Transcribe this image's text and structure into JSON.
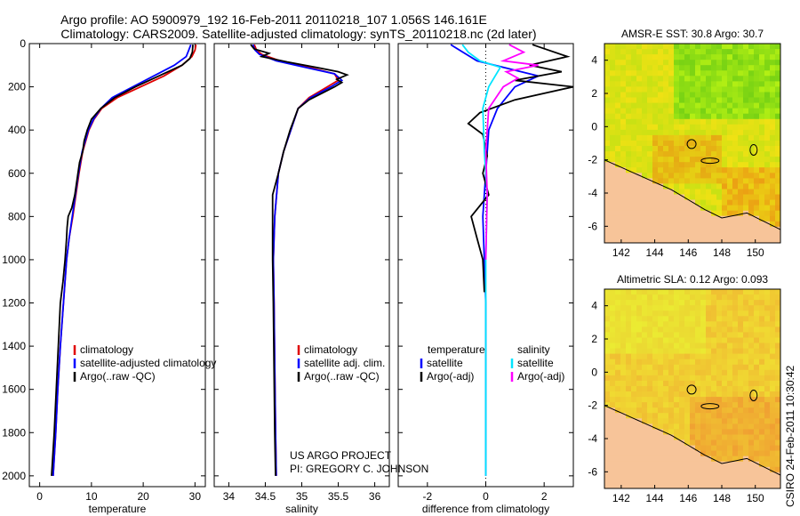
{
  "header": {
    "title_line1": "Argo profile: AO 5900979_192 16-Feb-2011 20110218_107 1.056S 146.161E",
    "title_line2": "Climatology: CARS2009. Satellite-adjusted climatology: synTS_20110218.nc (2d later)"
  },
  "side_text": "CSIRO 24-Feb-2011 10:30:42",
  "credit": {
    "line1": "US ARGO PROJECT",
    "line2": "PI: GREGORY C. JOHNSON"
  },
  "colors": {
    "climatology": "#e00000",
    "satellite": "#0000ff",
    "argo": "#000000",
    "cyan": "#00e5ff",
    "magenta": "#ff00ff",
    "land": "#f7c499"
  },
  "chart_data": [
    {
      "type": "line",
      "xlabel": "temperature",
      "ylim": [
        2050,
        0
      ],
      "xlim": [
        -2,
        32
      ],
      "xticks": [
        0,
        10,
        20,
        30
      ],
      "yticks": [
        0,
        200,
        400,
        600,
        800,
        1000,
        1200,
        1400,
        1600,
        1800,
        2000
      ],
      "legend": [
        "climatology",
        "satellite-adjusted climatology",
        "Argo(..raw -QC)"
      ],
      "series": [
        {
          "name": "climatology",
          "color": "#e00000",
          "points": [
            [
              30.2,
              5
            ],
            [
              30.0,
              30
            ],
            [
              29.4,
              60
            ],
            [
              27.5,
              100
            ],
            [
              24,
              150
            ],
            [
              19.5,
              200
            ],
            [
              15,
              250
            ],
            [
              12,
              300
            ],
            [
              10.5,
              350
            ],
            [
              9.5,
              400
            ],
            [
              8.3,
              500
            ],
            [
              7.6,
              600
            ],
            [
              7.0,
              700
            ],
            [
              6.4,
              800
            ],
            [
              5.7,
              900
            ],
            [
              5.2,
              1000
            ],
            [
              4.6,
              1200
            ],
            [
              4.0,
              1400
            ],
            [
              3.5,
              1600
            ],
            [
              3.1,
              1800
            ],
            [
              2.6,
              2000
            ]
          ]
        },
        {
          "name": "satellite-adjusted climatology",
          "color": "#0000ff",
          "points": [
            [
              29.2,
              5
            ],
            [
              28.8,
              30
            ],
            [
              28.3,
              60
            ],
            [
              26,
              100
            ],
            [
              22,
              150
            ],
            [
              18,
              200
            ],
            [
              14,
              250
            ],
            [
              11.8,
              300
            ],
            [
              10.4,
              350
            ],
            [
              9.4,
              400
            ],
            [
              8.2,
              500
            ],
            [
              7.5,
              600
            ],
            [
              6.9,
              700
            ],
            [
              6.3,
              800
            ],
            [
              5.7,
              900
            ],
            [
              5.2,
              1000
            ],
            [
              4.6,
              1200
            ],
            [
              4.0,
              1400
            ],
            [
              3.5,
              1600
            ],
            [
              3.1,
              1800
            ],
            [
              2.6,
              2000
            ]
          ]
        },
        {
          "name": "Argo(..raw -QC)",
          "color": "#000000",
          "points": [
            [
              29.6,
              5
            ],
            [
              29.5,
              40
            ],
            [
              29.0,
              70
            ],
            [
              27.5,
              100
            ],
            [
              23,
              150
            ],
            [
              18.5,
              200
            ],
            [
              14.5,
              250
            ],
            [
              11.8,
              300
            ],
            [
              10,
              350
            ],
            [
              9.2,
              400
            ],
            [
              8.6,
              450
            ],
            [
              8.3,
              500
            ],
            [
              7.7,
              550
            ],
            [
              7.4,
              600
            ],
            [
              6.8,
              700
            ],
            [
              6.2,
              760
            ],
            [
              5.5,
              800
            ],
            [
              5.3,
              850
            ],
            [
              5.2,
              900
            ],
            [
              4.9,
              1000
            ],
            [
              4.5,
              1100
            ],
            [
              4.0,
              1200
            ],
            [
              3.6,
              1400
            ],
            [
              3.2,
              1600
            ],
            [
              2.8,
              1800
            ],
            [
              2.3,
              2000
            ]
          ]
        }
      ]
    },
    {
      "type": "line",
      "xlabel": "salinity",
      "ylim": [
        2050,
        0
      ],
      "xlim": [
        33.8,
        36.2
      ],
      "xticks": [
        34,
        34.5,
        35,
        35.5,
        36
      ],
      "legend": [
        "climatology",
        "satellite adj. clim.",
        "Argo(..raw -QC)"
      ],
      "series": [
        {
          "name": "climatology",
          "color": "#e00000",
          "points": [
            [
              34.35,
              5
            ],
            [
              34.38,
              30
            ],
            [
              34.45,
              50
            ],
            [
              34.7,
              80
            ],
            [
              35.1,
              110
            ],
            [
              35.45,
              140
            ],
            [
              35.5,
              170
            ],
            [
              35.35,
              200
            ],
            [
              35.1,
              250
            ],
            [
              34.95,
              300
            ],
            [
              34.85,
              400
            ],
            [
              34.75,
              500
            ],
            [
              34.68,
              600
            ],
            [
              34.63,
              800
            ],
            [
              34.61,
              1000
            ],
            [
              34.62,
              1200
            ],
            [
              34.63,
              1500
            ],
            [
              34.64,
              1800
            ],
            [
              34.65,
              2000
            ]
          ]
        },
        {
          "name": "satellite adj. clim.",
          "color": "#0000ff",
          "points": [
            [
              34.33,
              5
            ],
            [
              34.36,
              30
            ],
            [
              34.42,
              50
            ],
            [
              34.65,
              80
            ],
            [
              35.05,
              110
            ],
            [
              35.45,
              140
            ],
            [
              35.55,
              170
            ],
            [
              35.4,
              200
            ],
            [
              35.12,
              250
            ],
            [
              34.95,
              300
            ],
            [
              34.85,
              400
            ],
            [
              34.75,
              500
            ],
            [
              34.68,
              600
            ],
            [
              34.63,
              800
            ],
            [
              34.61,
              1000
            ],
            [
              34.62,
              1200
            ],
            [
              34.63,
              1500
            ],
            [
              34.64,
              1800
            ],
            [
              34.65,
              2000
            ]
          ]
        },
        {
          "name": "Argo(..raw -QC)",
          "color": "#000000",
          "points": [
            [
              34.3,
              5
            ],
            [
              34.35,
              25
            ],
            [
              34.55,
              45
            ],
            [
              34.45,
              60
            ],
            [
              34.8,
              85
            ],
            [
              35.2,
              110
            ],
            [
              35.5,
              130
            ],
            [
              35.62,
              145
            ],
            [
              35.48,
              165
            ],
            [
              35.55,
              180
            ],
            [
              35.45,
              200
            ],
            [
              35.1,
              260
            ],
            [
              34.95,
              300
            ],
            [
              34.84,
              400
            ],
            [
              34.75,
              500
            ],
            [
              34.68,
              600
            ],
            [
              34.6,
              700
            ],
            [
              34.6,
              800
            ],
            [
              34.6,
              1000
            ],
            [
              34.61,
              1200
            ],
            [
              34.62,
              1500
            ],
            [
              34.63,
              1800
            ],
            [
              34.64,
              2000
            ]
          ]
        }
      ]
    },
    {
      "type": "line",
      "xlabel": "difference from climatology",
      "ylim": [
        2050,
        0
      ],
      "xlim": [
        -3,
        3
      ],
      "xticks": [
        -2,
        0,
        2
      ],
      "legend_headers": [
        "temperature",
        "salinity"
      ],
      "legend": [
        "satellite",
        "Argo(-adj)",
        "satellite",
        "Argo(-adj)"
      ],
      "series": [
        {
          "name": "satellite",
          "group": "temperature",
          "color": "#0000ff",
          "points": [
            [
              -1.2,
              5
            ],
            [
              -0.3,
              80
            ],
            [
              1.8,
              150
            ],
            [
              1.0,
              200
            ],
            [
              0.4,
              300
            ],
            [
              0.1,
              400
            ],
            [
              0.0,
              600
            ],
            [
              -0.1,
              800
            ],
            [
              0.0,
              1200
            ],
            [
              0.0,
              2000
            ]
          ]
        },
        {
          "name": "Argo(-adj)",
          "group": "temperature",
          "color": "#000000",
          "points": [
            [
              1.6,
              5
            ],
            [
              2.8,
              60
            ],
            [
              1.5,
              100
            ],
            [
              2.6,
              130
            ],
            [
              1.0,
              170
            ],
            [
              3.0,
              200
            ],
            [
              1.0,
              260
            ],
            [
              -0.2,
              320
            ],
            [
              -0.6,
              370
            ],
            [
              -0.1,
              420
            ],
            [
              0.05,
              520
            ],
            [
              -0.1,
              600
            ],
            [
              0.1,
              700
            ],
            [
              -0.5,
              800
            ],
            [
              -0.3,
              900
            ],
            [
              -0.1,
              1000
            ],
            [
              -0.05,
              1150
            ]
          ]
        },
        {
          "name": "satellite",
          "group": "salinity",
          "color": "#00e5ff",
          "points": [
            [
              -0.8,
              5
            ],
            [
              -0.6,
              40
            ],
            [
              -0.2,
              80
            ],
            [
              0.5,
              110
            ],
            [
              0.1,
              200
            ],
            [
              -0.1,
              300
            ],
            [
              -0.05,
              500
            ],
            [
              0.05,
              700
            ],
            [
              0.0,
              1000
            ],
            [
              0.0,
              1500
            ],
            [
              0.0,
              2000
            ]
          ]
        },
        {
          "name": "Argo(-adj)",
          "group": "salinity",
          "color": "#ff00ff",
          "points": [
            [
              0.8,
              5
            ],
            [
              1.3,
              40
            ],
            [
              0.6,
              80
            ],
            [
              1.8,
              100
            ],
            [
              0.7,
              130
            ],
            [
              1.1,
              160
            ],
            [
              0.6,
              200
            ],
            [
              0.1,
              300
            ],
            [
              0.0,
              500
            ],
            [
              0.05,
              700
            ],
            [
              0.0,
              1000
            ]
          ]
        }
      ]
    },
    {
      "type": "heatmap",
      "title": "AMSR-E SST: 30.8 Argo: 30.7",
      "xlim": [
        141,
        151.5
      ],
      "ylim": [
        -7,
        5
      ],
      "xticks": [
        142,
        144,
        146,
        148,
        150
      ],
      "yticks": [
        -6,
        -4,
        -2,
        0,
        2,
        4
      ],
      "marker": [
        146.2,
        -1.05
      ]
    },
    {
      "type": "heatmap",
      "title": "Altimetric SLA: 0.12 Argo: 0.093",
      "xlim": [
        141,
        151.5
      ],
      "ylim": [
        -7,
        5
      ],
      "xticks": [
        142,
        144,
        146,
        148,
        150
      ],
      "yticks": [
        -6,
        -4,
        -2,
        0,
        2,
        4
      ],
      "marker": [
        146.2,
        -1.05
      ]
    }
  ]
}
